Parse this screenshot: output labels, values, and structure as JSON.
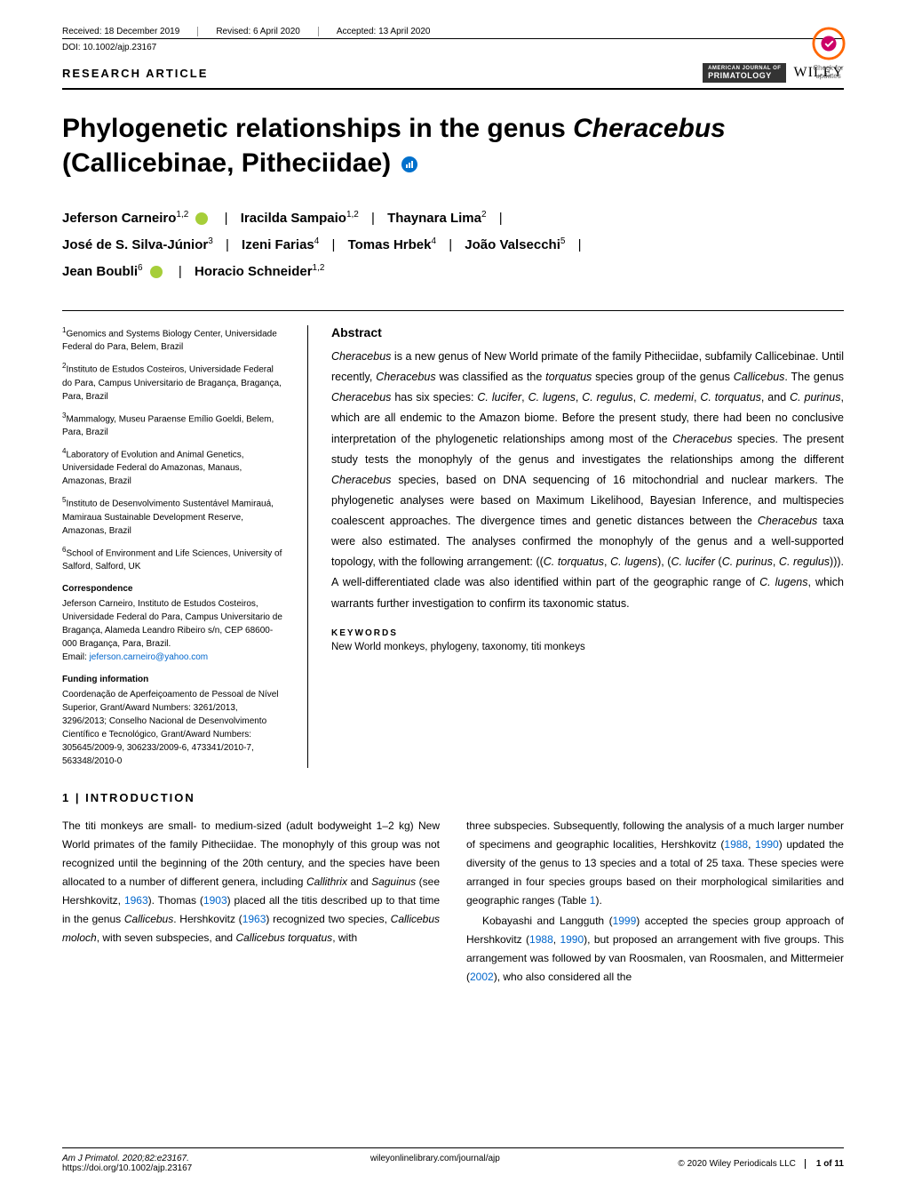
{
  "meta": {
    "received": "Received: 18 December 2019",
    "revised": "Revised: 6 April 2020",
    "accepted": "Accepted: 13 April 2020",
    "doi": "DOI: 10.1002/ajp.23167",
    "article_type": "RESEARCH ARTICLE",
    "journal_badge_top": "AMERICAN JOURNAL OF",
    "journal_badge": "PRIMATOLOGY",
    "publisher": "WILEY",
    "check_updates": "Check for updates"
  },
  "title": {
    "part1": "Phylogenetic relationships in the genus ",
    "italic": "Cheracebus",
    "part2": " (Callicebinae, Pitheciidae)"
  },
  "authors": {
    "a1": "Jeferson Carneiro",
    "s1": "1,2",
    "a2": "Iracilda Sampaio",
    "s2": "1,2",
    "a3": "Thaynara Lima",
    "s3": "2",
    "a4": "José de S. Silva-Júnior",
    "s4": "3",
    "a5": "Izeni Farias",
    "s5": "4",
    "a6": "Tomas Hrbek",
    "s6": "4",
    "a7": "João Valsecchi",
    "s7": "5",
    "a8": "Jean Boubli",
    "s8": "6",
    "a9": "Horacio Schneider",
    "s9": "1,2"
  },
  "affiliations": {
    "af1": "Genomics and Systems Biology Center, Universidade Federal do Para, Belem, Brazil",
    "af2": "Instituto de Estudos Costeiros, Universidade Federal do Para, Campus Universitario de Bragança, Bragança, Para, Brazil",
    "af3": "Mammalogy, Museu Paraense Emílio Goeldi, Belem, Para, Brazil",
    "af4": "Laboratory of Evolution and Animal Genetics, Universidade Federal do Amazonas, Manaus, Amazonas, Brazil",
    "af5": "Instituto de Desenvolvimento Sustentável Mamirauá, Mamiraua Sustainable Development Reserve, Amazonas, Brazil",
    "af6": "School of Environment and Life Sciences, University of Salford, Salford, UK"
  },
  "correspondence": {
    "heading": "Correspondence",
    "text": "Jeferson Carneiro, Instituto de Estudos Costeiros, Universidade Federal do Para, Campus Universitario de Bragança, Alameda Leandro Ribeiro s/n, CEP 68600-000 Bragança, Para, Brazil.",
    "email_label": "Email: ",
    "email": "jeferson.carneiro@yahoo.com"
  },
  "funding": {
    "heading": "Funding information",
    "text": "Coordenação de Aperfeiçoamento de Pessoal de Nível Superior, Grant/Award Numbers: 3261/2013, 3296/2013; Conselho Nacional de Desenvolvimento Científico e Tecnológico, Grant/Award Numbers: 305645/2009-9, 306233/2009-6, 473341/2010-7, 563348/2010-0"
  },
  "abstract": {
    "heading": "Abstract",
    "text_parts": [
      {
        "italic": true,
        "t": "Cheracebus"
      },
      {
        "t": " is a new genus of New World primate of the family Pitheciidae, subfamily Callicebinae. Until recently, "
      },
      {
        "italic": true,
        "t": "Cheracebus"
      },
      {
        "t": " was classified as the "
      },
      {
        "italic": true,
        "t": "torquatus"
      },
      {
        "t": " species group of the genus "
      },
      {
        "italic": true,
        "t": "Callicebus"
      },
      {
        "t": ". The genus "
      },
      {
        "italic": true,
        "t": "Cheracebus"
      },
      {
        "t": " has six species: "
      },
      {
        "italic": true,
        "t": "C. lucifer"
      },
      {
        "t": ", "
      },
      {
        "italic": true,
        "t": "C. lugens"
      },
      {
        "t": ", "
      },
      {
        "italic": true,
        "t": "C. regulus"
      },
      {
        "t": ", "
      },
      {
        "italic": true,
        "t": "C. medemi"
      },
      {
        "t": ", "
      },
      {
        "italic": true,
        "t": "C. torquatus"
      },
      {
        "t": ", and "
      },
      {
        "italic": true,
        "t": "C. purinus"
      },
      {
        "t": ", which are all endemic to the Amazon biome. Before the present study, there had been no conclusive interpretation of the phylogenetic relationships among most of the "
      },
      {
        "italic": true,
        "t": "Cheracebus"
      },
      {
        "t": " species. The present study tests the monophyly of the genus and investigates the relationships among the different "
      },
      {
        "italic": true,
        "t": "Cheracebus"
      },
      {
        "t": " species, based on DNA sequencing of 16 mitochondrial and nuclear markers. The phylogenetic analyses were based on Maximum Likelihood, Bayesian Inference, and multispecies coalescent approaches. The divergence times and genetic distances between the "
      },
      {
        "italic": true,
        "t": "Cheracebus"
      },
      {
        "t": " taxa were also estimated. The analyses confirmed the monophyly of the genus and a well-supported topology, with the following arrangement: (("
      },
      {
        "italic": true,
        "t": "C. torquatus"
      },
      {
        "t": ", "
      },
      {
        "italic": true,
        "t": "C. lugens"
      },
      {
        "t": "), ("
      },
      {
        "italic": true,
        "t": "C. lucifer"
      },
      {
        "t": " ("
      },
      {
        "italic": true,
        "t": "C. purinus"
      },
      {
        "t": ", "
      },
      {
        "italic": true,
        "t": "C. regulus"
      },
      {
        "t": "))). A well-differentiated clade was also identified within part of the geographic range of "
      },
      {
        "italic": true,
        "t": "C. lugens"
      },
      {
        "t": ", which warrants further investigation to confirm its taxonomic status."
      }
    ]
  },
  "keywords": {
    "heading": "KEYWORDS",
    "text": "New World monkeys, phylogeny, taxonomy, titi monkeys"
  },
  "intro": {
    "heading": "1 | INTRODUCTION",
    "col1_pre": "The titi monkeys are small- to medium-sized (adult bodyweight 1–2 kg) New World primates of the family Pitheciidae. The monophyly of this group was not recognized until the beginning of the 20th century, and the species have been allocated to a number of different genera, including ",
    "col1_i1": "Callithrix",
    "col1_mid1": " and ",
    "col1_i2": "Saguinus",
    "col1_mid2": " (see Hershkovitz, ",
    "col1_ref1": "1963",
    "col1_mid3": "). Thomas (",
    "col1_ref2": "1903",
    "col1_mid4": ") placed all the titis described up to that time in the genus ",
    "col1_i3": "Callicebus",
    "col1_mid5": ". Hershkovitz (",
    "col1_ref3": "1963",
    "col1_mid6": ") recognized two species, ",
    "col1_i4": "Callicebus moloch",
    "col1_mid7": ", with seven subspecies, and ",
    "col1_i5": "Callicebus torquatus",
    "col1_end": ", with",
    "col2_pre": "three subspecies. Subsequently, following the analysis of a much larger number of specimens and geographic localities, Hershkovitz (",
    "col2_ref1": "1988",
    "col2_mid1": ", ",
    "col2_ref2": "1990",
    "col2_mid2": ") updated the diversity of the genus to 13 species and a total of 25 taxa. These species were arranged in four species groups based on their morphological similarities and geographic ranges (Table ",
    "col2_ref3": "1",
    "col2_mid3": ").",
    "col2_p2_pre": "Kobayashi and Langguth (",
    "col2_ref4": "1999",
    "col2_p2_mid1": ") accepted the species group approach of Hershkovitz (",
    "col2_ref5": "1988",
    "col2_p2_mid2": ", ",
    "col2_ref6": "1990",
    "col2_p2_mid3": "), but proposed an arrangement with five groups. This arrangement was followed by van Roosmalen, van Roosmalen, and Mittermeier (",
    "col2_ref7": "2002",
    "col2_p2_end": "), who also considered all the"
  },
  "footer": {
    "citation": "Am J Primatol. 2020;82:e23167.",
    "doi_url": "https://doi.org/10.1002/ajp.23167",
    "lib_url": "wileyonlinelibrary.com/journal/ajp",
    "copyright": "© 2020 Wiley Periodicals LLC",
    "page": "1 of 11"
  }
}
